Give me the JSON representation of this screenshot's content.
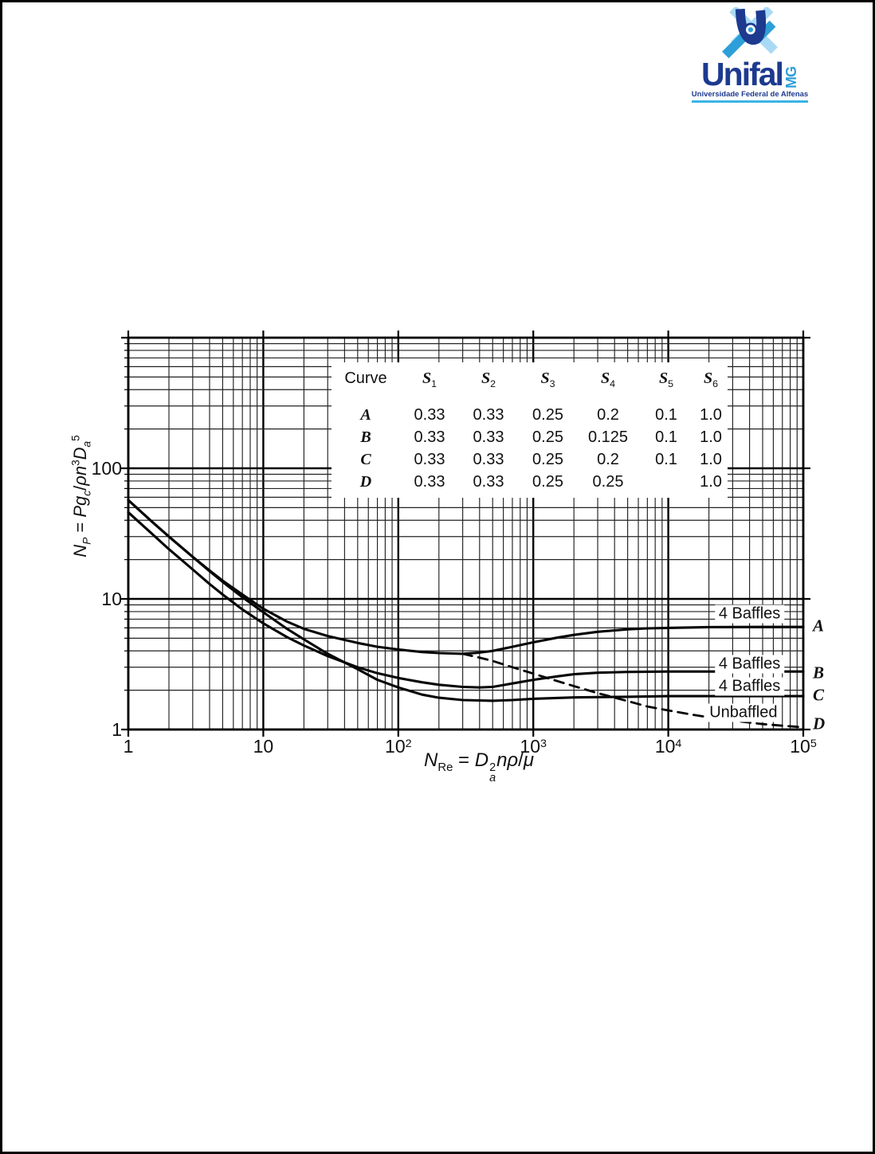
{
  "page": {
    "logo": {
      "wordmark": "Unifal",
      "state": "MG",
      "subtitle": "Universidade Federal de Alfenas",
      "colors": {
        "dark_blue": "#1d3a8f",
        "mid_blue": "#2d9fd8",
        "light_blue": "#a9daf5",
        "underline_blue": "#3ab4e8"
      }
    }
  },
  "chart_data": {
    "type": "line",
    "title": "",
    "grid": "log-log, major decade lines with minor lines at 2-9",
    "x_axis": {
      "scale": "log",
      "range": [
        1,
        100000
      ],
      "ticks": [
        {
          "label": "1",
          "exp": "",
          "value": 1
        },
        {
          "label": "10",
          "exp": "",
          "value": 10
        },
        {
          "label": "10",
          "exp": "2",
          "value": 100
        },
        {
          "label": "10",
          "exp": "3",
          "value": 1000
        },
        {
          "label": "10",
          "exp": "4",
          "value": 10000
        },
        {
          "label": "10",
          "exp": "5",
          "value": 100000
        }
      ],
      "title_plain": "N_Re = D_a^2 n rho / mu",
      "title_segments": [
        {
          "t": "N",
          "i": 1
        },
        {
          "t": "Re",
          "sub": 1
        },
        {
          "t": " = "
        },
        {
          "t": "D",
          "i": 1
        },
        {
          "stack": {
            "sup": "2",
            "sub": "a"
          }
        },
        {
          "t": "nρ",
          "i": 1
        },
        {
          "t": "/"
        },
        {
          "t": "μ",
          "i": 1
        }
      ]
    },
    "y_axis": {
      "scale": "log",
      "range": [
        1,
        1000
      ],
      "ticks": [
        {
          "label": "100",
          "value": 100
        },
        {
          "label": "10",
          "value": 10
        },
        {
          "label": "1",
          "value": 1
        }
      ],
      "title_plain": "N_P = P g_c / (rho n^3 D_a^5)",
      "title_segments": [
        {
          "t": "N",
          "i": 1
        },
        {
          "t": "P",
          "sub": 1,
          "i": 1
        },
        {
          "t": " = "
        },
        {
          "t": "Pg",
          "i": 1
        },
        {
          "t": "c",
          "sub": 1,
          "i": 1
        },
        {
          "t": "/"
        },
        {
          "t": "ρn",
          "i": 1
        },
        {
          "t": "3",
          "sup": 1
        },
        {
          "t": "D",
          "i": 1
        },
        {
          "t": "a",
          "sub": 1,
          "i": 1
        },
        {
          "t": "5",
          "sup": 1
        }
      ]
    },
    "series": [
      {
        "name": "A",
        "line": "solid",
        "baffles": "4 Baffles",
        "points": [
          [
            1,
            57
          ],
          [
            1.5,
            39
          ],
          [
            2,
            30
          ],
          [
            3,
            21
          ],
          [
            4,
            16.5
          ],
          [
            5,
            13.8
          ],
          [
            7,
            10.8
          ],
          [
            10,
            8.4
          ],
          [
            15,
            6.7
          ],
          [
            20,
            5.9
          ],
          [
            30,
            5.2
          ],
          [
            50,
            4.6
          ],
          [
            70,
            4.3
          ],
          [
            100,
            4.1
          ],
          [
            150,
            3.92
          ],
          [
            200,
            3.85
          ],
          [
            300,
            3.8
          ],
          [
            400,
            3.88
          ],
          [
            500,
            4.0
          ],
          [
            700,
            4.3
          ],
          [
            1000,
            4.65
          ],
          [
            1500,
            5.05
          ],
          [
            2000,
            5.3
          ],
          [
            3000,
            5.6
          ],
          [
            5000,
            5.85
          ],
          [
            7000,
            5.95
          ],
          [
            10000,
            6.0
          ],
          [
            20000,
            6.08
          ],
          [
            50000,
            6.1
          ],
          [
            100000,
            6.1
          ]
        ]
      },
      {
        "name": "B",
        "line": "solid",
        "baffles": "4 Baffles",
        "points": [
          [
            1,
            46
          ],
          [
            1.5,
            31.5
          ],
          [
            2,
            24
          ],
          [
            3,
            16.8
          ],
          [
            4,
            13
          ],
          [
            5,
            10.8
          ],
          [
            7,
            8.3
          ],
          [
            10,
            6.5
          ],
          [
            15,
            5.1
          ],
          [
            20,
            4.4
          ],
          [
            30,
            3.65
          ],
          [
            50,
            3.0
          ],
          [
            70,
            2.7
          ],
          [
            100,
            2.48
          ],
          [
            150,
            2.3
          ],
          [
            200,
            2.2
          ],
          [
            300,
            2.12
          ],
          [
            400,
            2.1
          ],
          [
            500,
            2.12
          ],
          [
            700,
            2.25
          ],
          [
            1000,
            2.4
          ],
          [
            1500,
            2.55
          ],
          [
            2000,
            2.65
          ],
          [
            3000,
            2.72
          ],
          [
            5000,
            2.76
          ],
          [
            10000,
            2.78
          ],
          [
            30000,
            2.78
          ],
          [
            100000,
            2.78
          ]
        ]
      },
      {
        "name": "C",
        "line": "solid",
        "baffles": "4 Baffles",
        "points": [
          [
            1,
            57
          ],
          [
            1.5,
            39
          ],
          [
            2,
            30
          ],
          [
            3,
            21
          ],
          [
            4,
            16.3
          ],
          [
            5,
            13.5
          ],
          [
            7,
            10.3
          ],
          [
            10,
            7.9
          ],
          [
            15,
            5.9
          ],
          [
            20,
            4.9
          ],
          [
            30,
            3.8
          ],
          [
            50,
            2.9
          ],
          [
            70,
            2.4
          ],
          [
            100,
            2.1
          ],
          [
            150,
            1.85
          ],
          [
            200,
            1.75
          ],
          [
            300,
            1.68
          ],
          [
            500,
            1.66
          ],
          [
            700,
            1.68
          ],
          [
            1000,
            1.72
          ],
          [
            2000,
            1.76
          ],
          [
            5000,
            1.78
          ],
          [
            10000,
            1.8
          ],
          [
            100000,
            1.8
          ]
        ]
      },
      {
        "name": "D",
        "line": "dashed",
        "baffles": "Unbaffled",
        "points": [
          [
            300,
            3.8
          ],
          [
            400,
            3.55
          ],
          [
            500,
            3.35
          ],
          [
            700,
            3.0
          ],
          [
            1000,
            2.68
          ],
          [
            1500,
            2.35
          ],
          [
            2000,
            2.15
          ],
          [
            3000,
            1.9
          ],
          [
            5000,
            1.65
          ],
          [
            7000,
            1.5
          ],
          [
            10000,
            1.4
          ],
          [
            15000,
            1.3
          ],
          [
            20000,
            1.24
          ],
          [
            30000,
            1.17
          ],
          [
            50000,
            1.1
          ],
          [
            70000,
            1.07
          ],
          [
            100000,
            1.04
          ]
        ]
      }
    ],
    "annotations": [
      {
        "text": "4 Baffles",
        "x": 40000,
        "y": 7.7,
        "series": "A"
      },
      {
        "text": "4 Baffles",
        "x": 40000,
        "y": 3.16,
        "series": "B"
      },
      {
        "text": "4 Baffles",
        "x": 40000,
        "y": 2.14,
        "series": "C"
      },
      {
        "text": "Unbaffled",
        "x": 36000,
        "y": 1.34,
        "series": "D"
      }
    ],
    "curve_end_labels": [
      {
        "text": "A",
        "y": 6.2
      },
      {
        "text": "B",
        "y": 2.7
      },
      {
        "text": "C",
        "y": 1.83
      },
      {
        "text": "D",
        "y": 1.1
      }
    ],
    "inset_table": {
      "headers": [
        {
          "text": "Curve",
          "sub": ""
        },
        {
          "text": "S",
          "sub": "1"
        },
        {
          "text": "S",
          "sub": "2"
        },
        {
          "text": "S",
          "sub": "3"
        },
        {
          "text": "S",
          "sub": "4"
        },
        {
          "text": "S",
          "sub": "5"
        },
        {
          "text": "S",
          "sub": "6"
        }
      ],
      "rows": [
        {
          "curve": "A",
          "values": [
            "0.33",
            "0.33",
            "0.25",
            "0.2",
            "0.1",
            "1.0"
          ]
        },
        {
          "curve": "B",
          "values": [
            "0.33",
            "0.33",
            "0.25",
            "0.125",
            "0.1",
            "1.0"
          ]
        },
        {
          "curve": "C",
          "values": [
            "0.33",
            "0.33",
            "0.25",
            "0.2",
            "0.1",
            "1.0"
          ]
        },
        {
          "curve": "D",
          "values": [
            "0.33",
            "0.33",
            "0.25",
            "0.25",
            "",
            "1.0"
          ]
        }
      ]
    }
  }
}
